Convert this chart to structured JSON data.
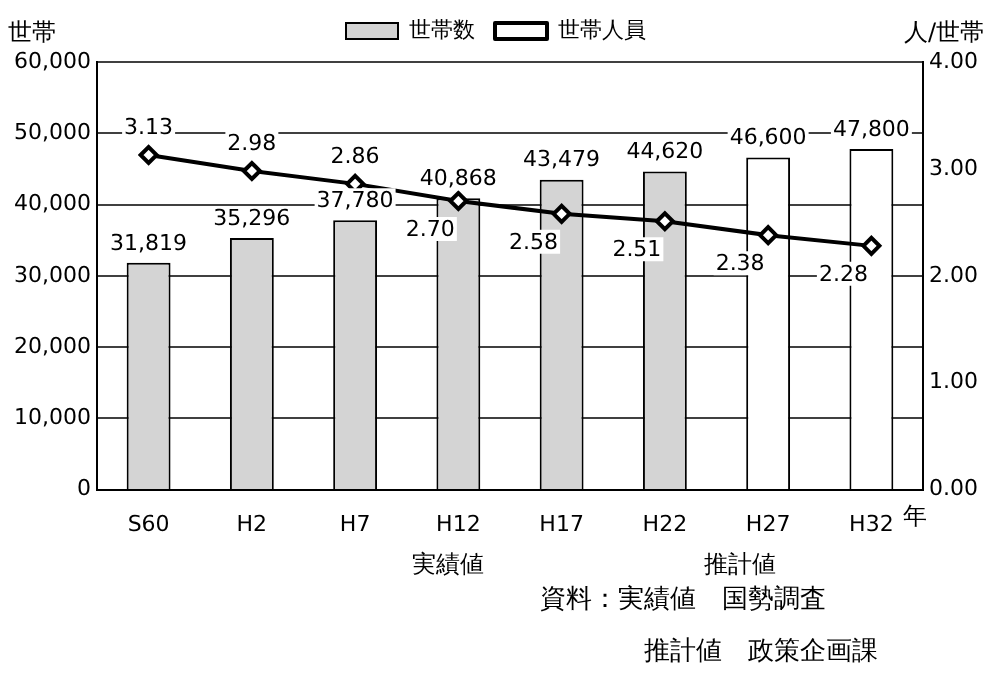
{
  "chart_data": {
    "type": "bar",
    "ylabel": "世帯",
    "y2label": "人/世帯",
    "xlabel": "年",
    "categories": [
      "S60",
      "H2",
      "H7",
      "H12",
      "H17",
      "H22",
      "H27",
      "H32"
    ],
    "series": [
      {
        "name": "世帯数",
        "colors": [
          "#d4d4d4",
          "#d4d4d4",
          "#d4d4d4",
          "#d4d4d4",
          "#d4d4d4",
          "#d4d4d4",
          "#ffffff",
          "#ffffff"
        ],
        "values": [
          31819,
          35296,
          37780,
          40868,
          43479,
          44620,
          46600,
          47800
        ],
        "value_labels": [
          "31,819",
          "35,296",
          "37,780",
          "40,868",
          "43,479",
          "44,620",
          "46,600",
          "47,800"
        ]
      },
      {
        "name": "世帯人員",
        "type": "line",
        "axis": "y2",
        "color": "#000000",
        "marker": "diamond",
        "values": [
          3.13,
          2.98,
          2.86,
          2.7,
          2.58,
          2.51,
          2.38,
          2.28
        ],
        "value_labels": [
          "3.13",
          "2.98",
          "2.86",
          "2.70",
          "2.58",
          "2.51",
          "2.38",
          "2.28"
        ]
      }
    ],
    "ylim": [
      0,
      60000
    ],
    "yticks": [
      0,
      {
        "value": 10000,
        "label": "10,000"
      },
      {
        "value": 20000,
        "label": "20,000"
      },
      {
        "value": 30000,
        "label": "30,000"
      },
      {
        "value": 40000,
        "label": "40,000"
      },
      {
        "value": 50000,
        "label": "50,000"
      },
      {
        "value": 60000,
        "label": "60,000"
      }
    ],
    "y2lim": [
      0,
      4
    ],
    "y2ticks": [
      {
        "value": 0,
        "label": "0.00"
      },
      {
        "value": 1,
        "label": "1.00"
      },
      {
        "value": 2,
        "label": "2.00"
      },
      {
        "value": 3,
        "label": "3.00"
      },
      {
        "value": 4,
        "label": "4.00"
      }
    ],
    "grid": "y",
    "legend": "top",
    "annotations": [
      "実績値",
      "推計値",
      "資料：実績値　国勢調査",
      "推計値　政策企画課"
    ]
  }
}
